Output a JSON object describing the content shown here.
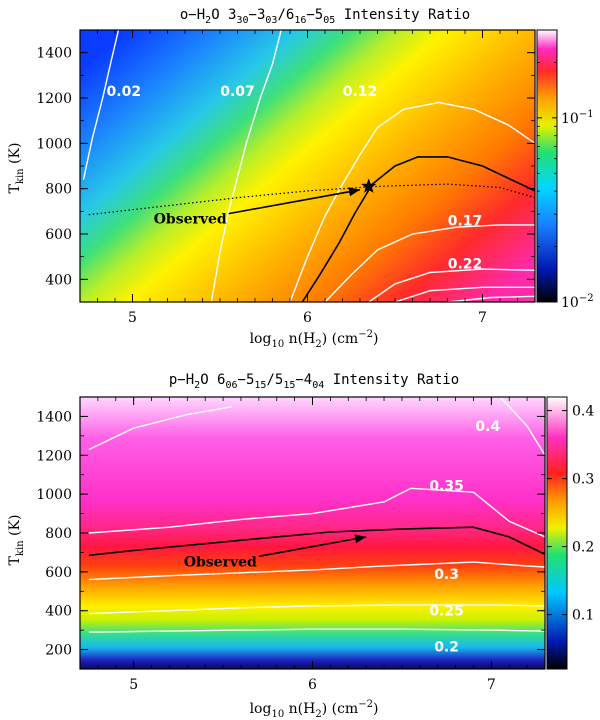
{
  "chart_data": [
    {
      "type": "heatmap",
      "title": "o−H₂O 3₃₀−3₀₃/6₁₆−5₀₅ Intensity Ratio",
      "title_parts": {
        "pre": "o−H",
        "sub1": "2",
        "mid1": "O 3",
        "sub2": "30",
        "mid2": "−3",
        "sub3": "03",
        "mid3": "/6",
        "sub4": "16",
        "mid4": "−5",
        "sub5": "05",
        "post": " Intensity Ratio"
      },
      "xlabel": "log10 n(H2) (cm^-2)",
      "ylabel": "Tkin (K)",
      "xlim": [
        4.7,
        7.3
      ],
      "ylim": [
        300,
        1500
      ],
      "x_ticks": [
        5,
        6,
        7
      ],
      "y_ticks": [
        400,
        600,
        800,
        1000,
        1200,
        1400
      ],
      "colorbar": {
        "scale": "log",
        "range": [
          0.01,
          0.3
        ],
        "tick_labels": [
          "10^-2",
          "10^-1"
        ],
        "tick_values": [
          0.01,
          0.1
        ]
      },
      "contour_labels": [
        {
          "text": "0.02",
          "x": 4.95,
          "y": 1230
        },
        {
          "text": "0.07",
          "x": 5.6,
          "y": 1230
        },
        {
          "text": "0.12",
          "x": 6.3,
          "y": 1230
        },
        {
          "text": "0.17",
          "x": 6.9,
          "y": 660
        },
        {
          "text": "0.22",
          "x": 6.9,
          "y": 470
        }
      ],
      "contours": [
        {
          "level": 0.02,
          "color": "white",
          "points": [
            [
              4.72,
              840
            ],
            [
              4.77,
              1020
            ],
            [
              4.83,
              1200
            ],
            [
              4.88,
              1370
            ],
            [
              4.92,
              1500
            ]
          ]
        },
        {
          "level": 0.07,
          "color": "white",
          "points": [
            [
              5.45,
              300
            ],
            [
              5.5,
              520
            ],
            [
              5.55,
              700
            ],
            [
              5.6,
              850
            ],
            [
              5.65,
              1000
            ],
            [
              5.73,
              1200
            ],
            [
              5.8,
              1350
            ],
            [
              5.85,
              1500
            ]
          ]
        },
        {
          "level": 0.12,
          "color": "white",
          "points": [
            [
              5.9,
              300
            ],
            [
              6.0,
              500
            ],
            [
              6.1,
              680
            ],
            [
              6.2,
              820
            ],
            [
              6.3,
              950
            ],
            [
              6.4,
              1070
            ],
            [
              6.55,
              1150
            ],
            [
              6.75,
              1180
            ],
            [
              6.95,
              1150
            ],
            [
              7.15,
              1080
            ],
            [
              7.3,
              1000
            ]
          ]
        },
        {
          "level": 0.14,
          "color": "black",
          "points": [
            [
              5.97,
              300
            ],
            [
              6.07,
              420
            ],
            [
              6.18,
              560
            ],
            [
              6.27,
              690
            ],
            [
              6.37,
              820
            ],
            [
              6.5,
              900
            ],
            [
              6.63,
              940
            ],
            [
              6.8,
              940
            ],
            [
              7.0,
              900
            ],
            [
              7.3,
              790
            ]
          ]
        },
        {
          "level": 0.17,
          "color": "white",
          "points": [
            [
              6.1,
              300
            ],
            [
              6.25,
              420
            ],
            [
              6.4,
              530
            ],
            [
              6.6,
              600
            ],
            [
              6.85,
              630
            ],
            [
              7.1,
              640
            ],
            [
              7.3,
              640
            ]
          ]
        },
        {
          "level": 0.22,
          "color": "white",
          "points": [
            [
              6.35,
              300
            ],
            [
              6.5,
              380
            ],
            [
              6.7,
              430
            ],
            [
              7.0,
              445
            ],
            [
              7.3,
              440
            ]
          ]
        },
        {
          "level": 0.25,
          "color": "white",
          "points": [
            [
              6.5,
              300
            ],
            [
              6.7,
              350
            ],
            [
              7.0,
              365
            ],
            [
              7.3,
              365
            ]
          ]
        },
        {
          "level": 0.27,
          "color": "white",
          "points": [
            [
              6.8,
              300
            ],
            [
              7.05,
              320
            ],
            [
              7.3,
              325
            ]
          ]
        }
      ],
      "observed_curve": [
        [
          4.75,
          685
        ],
        [
          5.2,
          725
        ],
        [
          5.6,
          760
        ],
        [
          6.0,
          790
        ],
        [
          6.4,
          810
        ],
        [
          6.8,
          820
        ],
        [
          7.1,
          805
        ],
        [
          7.3,
          760
        ]
      ],
      "observed_point": {
        "x": 6.35,
        "y": 810
      },
      "observed_label": "Observed",
      "arrow": {
        "from": [
          5.55,
          690
        ],
        "to": [
          6.3,
          795
        ]
      }
    },
    {
      "type": "heatmap",
      "title": "p−H₂O 6₀₆−5₁₅/5₁₅−4₀₄ Intensity Ratio",
      "title_parts": {
        "pre": "p−H",
        "sub1": "2",
        "mid1": "O 6",
        "sub2": "06",
        "mid2": "−5",
        "sub3": "15",
        "mid3": "/5",
        "sub4": "15",
        "mid4": "−4",
        "sub5": "04",
        "post": " Intensity Ratio"
      },
      "xlabel": "log10 n(H2) (cm^-2)",
      "ylabel": "Tkin (K)",
      "xlim": [
        4.7,
        7.3
      ],
      "ylim": [
        100,
        1500
      ],
      "x_ticks": [
        5,
        6,
        7
      ],
      "y_ticks": [
        200,
        400,
        600,
        800,
        1000,
        1200,
        1400
      ],
      "colorbar": {
        "scale": "linear",
        "range": [
          0.02,
          0.42
        ],
        "tick_labels": [
          "0.1",
          "0.2",
          "0.3",
          "0.4"
        ],
        "tick_values": [
          0.1,
          0.2,
          0.3,
          0.4
        ]
      },
      "contour_labels": [
        {
          "text": "0.4",
          "x": 6.98,
          "y": 1350
        },
        {
          "text": "0.35",
          "x": 6.75,
          "y": 1045
        },
        {
          "text": "0.3",
          "x": 6.75,
          "y": 590
        },
        {
          "text": "0.25",
          "x": 6.75,
          "y": 400
        },
        {
          "text": "0.2",
          "x": 6.75,
          "y": 215
        }
      ],
      "contours": [
        {
          "level": 0.4,
          "color": "white",
          "points": [
            [
              4.75,
              1230
            ],
            [
              5.0,
              1340
            ],
            [
              5.3,
              1410
            ],
            [
              5.55,
              1450
            ]
          ]
        },
        {
          "level": 0.4,
          "color": "white",
          "points": [
            [
              7.05,
              1500
            ],
            [
              7.2,
              1350
            ],
            [
              7.3,
              1200
            ]
          ]
        },
        {
          "level": 0.35,
          "color": "white",
          "points": [
            [
              4.75,
              800
            ],
            [
              5.2,
              830
            ],
            [
              5.6,
              870
            ],
            [
              6.0,
              900
            ],
            [
              6.4,
              960
            ],
            [
              6.55,
              1030
            ],
            [
              6.9,
              1010
            ],
            [
              7.1,
              860
            ],
            [
              7.3,
              780
            ]
          ]
        },
        {
          "level": 0.33,
          "color": "black",
          "points": [
            [
              4.75,
              685
            ],
            [
              5.0,
              710
            ],
            [
              5.4,
              745
            ],
            [
              5.8,
              780
            ],
            [
              6.1,
              805
            ],
            [
              6.5,
              820
            ],
            [
              6.9,
              830
            ],
            [
              7.1,
              780
            ],
            [
              7.3,
              690
            ]
          ]
        },
        {
          "level": 0.3,
          "color": "white",
          "points": [
            [
              4.75,
              560
            ],
            [
              5.2,
              580
            ],
            [
              5.6,
              595
            ],
            [
              6.0,
              610
            ],
            [
              6.4,
              630
            ],
            [
              6.9,
              650
            ],
            [
              7.2,
              630
            ],
            [
              7.3,
              625
            ]
          ]
        },
        {
          "level": 0.25,
          "color": "white",
          "points": [
            [
              4.75,
              385
            ],
            [
              5.2,
              400
            ],
            [
              5.6,
              415
            ],
            [
              6.0,
              425
            ],
            [
              6.5,
              430
            ],
            [
              7.0,
              430
            ],
            [
              7.3,
              425
            ]
          ]
        },
        {
          "level": 0.2,
          "color": "white",
          "points": [
            [
              4.75,
              290
            ],
            [
              5.2,
              295
            ],
            [
              5.6,
              300
            ],
            [
              6.0,
              305
            ],
            [
              6.5,
              305
            ],
            [
              7.0,
              300
            ],
            [
              7.3,
              295
            ]
          ]
        }
      ],
      "observed_label": "Observed",
      "arrow": {
        "from": [
          5.7,
          680
        ],
        "to": [
          6.3,
          780
        ]
      }
    }
  ]
}
